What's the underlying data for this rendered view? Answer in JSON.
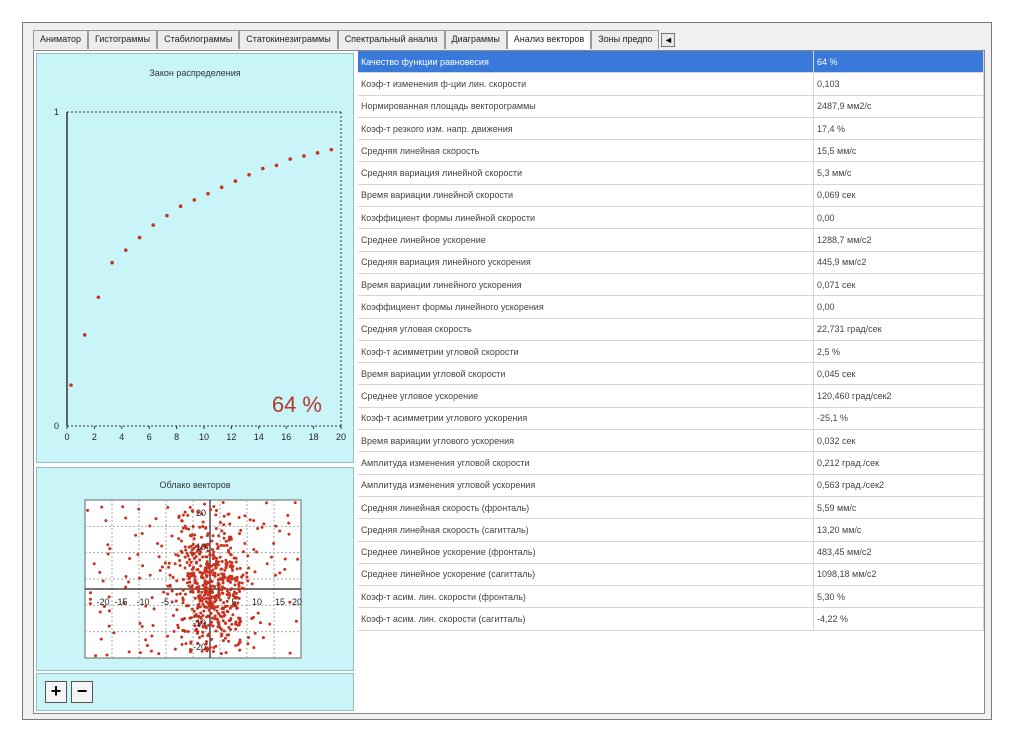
{
  "tabs": [
    "Аниматор",
    "Гистограммы",
    "Стабилограммы",
    "Статокинезиграммы",
    "Спектральный анализ",
    "Диаграммы",
    "Анализ векторов",
    "Зоны предпо"
  ],
  "active_tab": "Анализ векторов",
  "tab_scroll_label": "◄",
  "distribution": {
    "title": "Закон распределения",
    "percent_label": "64 %",
    "x_ticks": [
      "0",
      "2",
      "4",
      "6",
      "8",
      "10",
      "12",
      "14",
      "16",
      "18",
      "20"
    ],
    "y_ticks": [
      "0",
      "1"
    ]
  },
  "chart_data": {
    "type": "scatter",
    "title": "Закон распределения",
    "xlim": [
      0,
      20
    ],
    "ylim": [
      0,
      1
    ],
    "x": [
      0,
      1,
      2,
      3,
      4,
      5,
      6,
      7,
      8,
      9,
      10,
      11,
      12,
      13,
      14,
      15,
      16,
      17,
      18,
      19
    ],
    "y": [
      0.13,
      0.29,
      0.41,
      0.52,
      0.56,
      0.6,
      0.64,
      0.67,
      0.7,
      0.72,
      0.74,
      0.76,
      0.78,
      0.8,
      0.82,
      0.83,
      0.85,
      0.86,
      0.87,
      0.88
    ]
  },
  "cloud": {
    "title": "Облако векторов",
    "x_ticks": [
      "-20",
      "-15",
      "-10",
      "-5",
      "5",
      "10",
      "15",
      "20"
    ],
    "y_ticks": [
      "20",
      "10",
      "-10",
      "-20"
    ]
  },
  "buttons": {
    "plus": "+",
    "minus": "−"
  },
  "rows": [
    {
      "name": "Качество функции равновесия",
      "value": "64 %"
    },
    {
      "name": "Коэф-т изменения ф-ции лин. скорости",
      "value": "0,103"
    },
    {
      "name": "Нормированная площадь векторограммы",
      "value": "2487,9 мм2/с"
    },
    {
      "name": "Коэф-т резкого изм. напр. движения",
      "value": "17,4 %"
    },
    {
      "name": "Средняя линейная скорость",
      "value": "15,5 мм/с"
    },
    {
      "name": "Средняя вариация линейной скорости",
      "value": "5,3 мм/с"
    },
    {
      "name": "Время вариации линейной скорости",
      "value": "0,069 сек"
    },
    {
      "name": "Коэффициент формы линейной скорости",
      "value": "0,00"
    },
    {
      "name": "Среднее линейное ускорение",
      "value": "1288,7 мм/с2"
    },
    {
      "name": "Средняя вариация линейного ускорения",
      "value": "445,9 мм/с2"
    },
    {
      "name": "Время вариации линейного ускорения",
      "value": "0,071 сек"
    },
    {
      "name": "Коэффициент формы линейного ускорения",
      "value": "0,00"
    },
    {
      "name": "Средняя угловая скорость",
      "value": "22,731 град/сек"
    },
    {
      "name": "Коэф-т асимметрии угловой скорости",
      "value": "2,5 %"
    },
    {
      "name": "Время вариации угловой скорости",
      "value": "0,045 сек"
    },
    {
      "name": "Среднее угловое ускорение",
      "value": "120,460 град/сек2"
    },
    {
      "name": "Коэф-т асимметрии углового ускорения",
      "value": "-25,1 %"
    },
    {
      "name": "Время вариации углового ускорения",
      "value": "0,032 сек"
    },
    {
      "name": "Амплитуда изменения угловой скорости",
      "value": "0,212 град./сек"
    },
    {
      "name": "Амплитуда изменения угловой ускорения",
      "value": "0,563 град./сек2"
    },
    {
      "name": "Средняя линейная скорость (фронталь)",
      "value": "5,59 мм/с"
    },
    {
      "name": "Средняя линейная скорость (сагитталь)",
      "value": "13,20 мм/с"
    },
    {
      "name": "Среднее линейное ускорение (фронталь)",
      "value": "483,45 мм/с2"
    },
    {
      "name": "Среднее линейное ускорение (сагитталь)",
      "value": "1098,18 мм/с2"
    },
    {
      "name": "Коэф-т асим. лин. скорости (фронталь)",
      "value": "5,30 %"
    },
    {
      "name": "Коэф-т асим. лин. скорости (сагитталь)",
      "value": "-4,22 %"
    }
  ],
  "colors": {
    "panel_bg": "#c9f4f8",
    "selection": "#3879d9",
    "points": "#c8321e"
  }
}
